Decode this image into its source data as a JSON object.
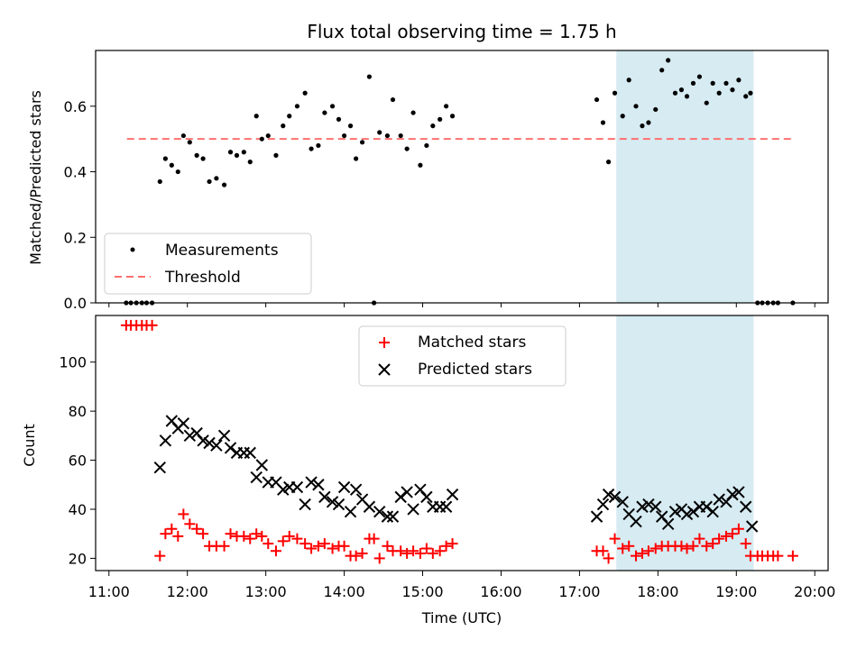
{
  "chart_data": [
    {
      "type": "scatter",
      "title": "Flux total observing time = 1.75 h",
      "ylabel": "Matched/Predicted stars",
      "xlabel": "",
      "x_unit": "hours UTC",
      "xlim": [
        10.83,
        20.17
      ],
      "ylim": [
        0.0,
        0.77
      ],
      "yticks": [
        0.0,
        0.2,
        0.4,
        0.6
      ],
      "ytick_labels": [
        "0.0",
        "0.2",
        "0.4",
        "0.6"
      ],
      "shaded_region": {
        "x": [
          17.47,
          19.22
        ],
        "color": "#add8e6"
      },
      "legend": {
        "placement": "lower-left",
        "entries": [
          "Measurements",
          "Threshold"
        ]
      },
      "threshold": {
        "name": "Threshold",
        "x": [
          11.23,
          19.73
        ],
        "y": 0.5,
        "color": "#ff7070"
      },
      "series": [
        {
          "name": "Measurements",
          "marker": "dot",
          "color": "#000000",
          "points": [
            [
              11.22,
              0.0
            ],
            [
              11.28,
              0.0
            ],
            [
              11.35,
              0.0
            ],
            [
              11.42,
              0.0
            ],
            [
              11.48,
              0.0
            ],
            [
              11.55,
              0.0
            ],
            [
              11.65,
              0.37
            ],
            [
              11.72,
              0.44
            ],
            [
              11.8,
              0.42
            ],
            [
              11.88,
              0.4
            ],
            [
              11.95,
              0.51
            ],
            [
              12.03,
              0.49
            ],
            [
              12.12,
              0.45
            ],
            [
              12.2,
              0.44
            ],
            [
              12.28,
              0.37
            ],
            [
              12.37,
              0.38
            ],
            [
              12.47,
              0.36
            ],
            [
              12.55,
              0.46
            ],
            [
              12.63,
              0.45
            ],
            [
              12.72,
              0.46
            ],
            [
              12.8,
              0.43
            ],
            [
              12.88,
              0.57
            ],
            [
              12.95,
              0.5
            ],
            [
              13.03,
              0.51
            ],
            [
              13.13,
              0.45
            ],
            [
              13.22,
              0.54
            ],
            [
              13.3,
              0.57
            ],
            [
              13.4,
              0.6
            ],
            [
              13.5,
              0.64
            ],
            [
              13.58,
              0.47
            ],
            [
              13.67,
              0.48
            ],
            [
              13.75,
              0.58
            ],
            [
              13.85,
              0.6
            ],
            [
              13.93,
              0.56
            ],
            [
              14.0,
              0.51
            ],
            [
              14.08,
              0.54
            ],
            [
              14.15,
              0.44
            ],
            [
              14.23,
              0.49
            ],
            [
              14.32,
              0.69
            ],
            [
              14.38,
              0.0
            ],
            [
              14.45,
              0.52
            ],
            [
              14.55,
              0.51
            ],
            [
              14.62,
              0.62
            ],
            [
              14.72,
              0.51
            ],
            [
              14.8,
              0.47
            ],
            [
              14.88,
              0.58
            ],
            [
              14.97,
              0.42
            ],
            [
              15.05,
              0.48
            ],
            [
              15.13,
              0.54
            ],
            [
              15.22,
              0.56
            ],
            [
              15.3,
              0.6
            ],
            [
              15.38,
              0.57
            ],
            [
              17.22,
              0.62
            ],
            [
              17.3,
              0.55
            ],
            [
              17.37,
              0.43
            ],
            [
              17.45,
              0.64
            ],
            [
              17.55,
              0.57
            ],
            [
              17.63,
              0.68
            ],
            [
              17.72,
              0.6
            ],
            [
              17.8,
              0.54
            ],
            [
              17.88,
              0.55
            ],
            [
              17.97,
              0.59
            ],
            [
              18.05,
              0.71
            ],
            [
              18.13,
              0.74
            ],
            [
              18.22,
              0.64
            ],
            [
              18.3,
              0.65
            ],
            [
              18.37,
              0.63
            ],
            [
              18.45,
              0.67
            ],
            [
              18.53,
              0.69
            ],
            [
              18.62,
              0.61
            ],
            [
              18.7,
              0.67
            ],
            [
              18.78,
              0.64
            ],
            [
              18.87,
              0.67
            ],
            [
              18.95,
              0.65
            ],
            [
              19.03,
              0.68
            ],
            [
              19.12,
              0.63
            ],
            [
              19.18,
              0.64
            ],
            [
              19.27,
              0.0
            ],
            [
              19.33,
              0.0
            ],
            [
              19.4,
              0.0
            ],
            [
              19.47,
              0.0
            ],
            [
              19.53,
              0.0
            ],
            [
              19.72,
              0.0
            ]
          ]
        }
      ]
    },
    {
      "type": "scatter",
      "title": "",
      "xlabel": "Time (UTC)",
      "ylabel": "Count",
      "x_unit": "hours UTC",
      "xlim": [
        10.83,
        20.17
      ],
      "ylim": [
        15,
        119
      ],
      "yticks": [
        20,
        40,
        60,
        80,
        100
      ],
      "ytick_labels": [
        "20",
        "40",
        "60",
        "80",
        "100"
      ],
      "xticks": [
        11,
        12,
        13,
        14,
        15,
        16,
        17,
        18,
        19,
        20
      ],
      "xtick_labels": [
        "11:00",
        "12:00",
        "13:00",
        "14:00",
        "15:00",
        "16:00",
        "17:00",
        "18:00",
        "19:00",
        "20:00"
      ],
      "shaded_region": {
        "x": [
          17.47,
          19.22
        ],
        "color": "#add8e6"
      },
      "legend": {
        "placement": "upper-center",
        "entries": [
          "Matched stars",
          "Predicted stars"
        ]
      },
      "series": [
        {
          "name": "Matched stars",
          "marker": "plus",
          "color": "#ff0000",
          "points": [
            [
              11.22,
              115
            ],
            [
              11.28,
              115
            ],
            [
              11.35,
              115
            ],
            [
              11.42,
              115
            ],
            [
              11.48,
              115
            ],
            [
              11.55,
              115
            ],
            [
              11.65,
              21
            ],
            [
              11.72,
              30
            ],
            [
              11.8,
              32
            ],
            [
              11.88,
              29
            ],
            [
              11.95,
              38
            ],
            [
              12.03,
              34
            ],
            [
              12.12,
              32
            ],
            [
              12.2,
              30
            ],
            [
              12.28,
              25
            ],
            [
              12.37,
              25
            ],
            [
              12.47,
              25
            ],
            [
              12.55,
              30
            ],
            [
              12.63,
              29
            ],
            [
              12.72,
              29
            ],
            [
              12.8,
              28
            ],
            [
              12.88,
              30
            ],
            [
              12.95,
              29
            ],
            [
              13.03,
              26
            ],
            [
              13.13,
              23
            ],
            [
              13.22,
              27
            ],
            [
              13.3,
              29
            ],
            [
              13.4,
              28
            ],
            [
              13.5,
              26
            ],
            [
              13.58,
              24
            ],
            [
              13.67,
              25
            ],
            [
              13.75,
              26
            ],
            [
              13.85,
              24
            ],
            [
              13.93,
              25
            ],
            [
              14.0,
              25
            ],
            [
              14.08,
              21
            ],
            [
              14.15,
              21
            ],
            [
              14.23,
              22
            ],
            [
              14.32,
              28
            ],
            [
              14.38,
              28
            ],
            [
              14.45,
              20
            ],
            [
              14.55,
              25
            ],
            [
              14.62,
              23
            ],
            [
              14.72,
              23
            ],
            [
              14.8,
              22
            ],
            [
              14.88,
              23
            ],
            [
              14.97,
              22
            ],
            [
              15.05,
              24
            ],
            [
              15.13,
              22
            ],
            [
              15.22,
              23
            ],
            [
              15.3,
              25
            ],
            [
              15.38,
              26
            ],
            [
              17.22,
              23
            ],
            [
              17.3,
              23
            ],
            [
              17.37,
              20
            ],
            [
              17.45,
              28
            ],
            [
              17.55,
              24
            ],
            [
              17.63,
              25
            ],
            [
              17.72,
              21
            ],
            [
              17.8,
              22
            ],
            [
              17.88,
              23
            ],
            [
              17.97,
              24
            ],
            [
              18.05,
              25
            ],
            [
              18.13,
              25
            ],
            [
              18.22,
              25
            ],
            [
              18.3,
              25
            ],
            [
              18.37,
              24
            ],
            [
              18.45,
              25
            ],
            [
              18.53,
              28
            ],
            [
              18.62,
              25
            ],
            [
              18.7,
              26
            ],
            [
              18.78,
              28
            ],
            [
              18.87,
              29
            ],
            [
              18.95,
              30
            ],
            [
              19.03,
              32
            ],
            [
              19.12,
              26
            ],
            [
              19.18,
              21
            ],
            [
              19.27,
              21
            ],
            [
              19.33,
              21
            ],
            [
              19.4,
              21
            ],
            [
              19.47,
              21
            ],
            [
              19.53,
              21
            ],
            [
              19.72,
              21
            ]
          ]
        },
        {
          "name": "Predicted stars",
          "marker": "x",
          "color": "#000000",
          "points": [
            [
              11.65,
              57
            ],
            [
              11.72,
              68
            ],
            [
              11.8,
              76
            ],
            [
              11.88,
              73
            ],
            [
              11.95,
              75
            ],
            [
              12.03,
              70
            ],
            [
              12.12,
              71
            ],
            [
              12.2,
              68
            ],
            [
              12.28,
              67
            ],
            [
              12.37,
              66
            ],
            [
              12.47,
              70
            ],
            [
              12.55,
              65
            ],
            [
              12.63,
              63
            ],
            [
              12.72,
              63
            ],
            [
              12.8,
              63
            ],
            [
              12.88,
              53
            ],
            [
              12.95,
              58
            ],
            [
              13.03,
              51
            ],
            [
              13.13,
              51
            ],
            [
              13.22,
              48
            ],
            [
              13.3,
              49
            ],
            [
              13.4,
              49
            ],
            [
              13.5,
              42
            ],
            [
              13.58,
              51
            ],
            [
              13.67,
              50
            ],
            [
              13.75,
              45
            ],
            [
              13.85,
              43
            ],
            [
              13.93,
              42
            ],
            [
              14.0,
              49
            ],
            [
              14.08,
              39
            ],
            [
              14.15,
              48
            ],
            [
              14.23,
              44
            ],
            [
              14.32,
              41
            ],
            [
              14.45,
              39
            ],
            [
              14.55,
              37
            ],
            [
              14.62,
              37
            ],
            [
              14.72,
              45
            ],
            [
              14.8,
              47
            ],
            [
              14.88,
              40
            ],
            [
              14.97,
              48
            ],
            [
              15.05,
              45
            ],
            [
              15.13,
              41
            ],
            [
              15.22,
              41
            ],
            [
              15.3,
              41
            ],
            [
              15.38,
              46
            ],
            [
              17.22,
              37
            ],
            [
              17.3,
              42
            ],
            [
              17.37,
              46
            ],
            [
              17.45,
              45
            ],
            [
              17.55,
              43
            ],
            [
              17.63,
              38
            ],
            [
              17.72,
              35
            ],
            [
              17.8,
              41
            ],
            [
              17.88,
              42
            ],
            [
              17.97,
              41
            ],
            [
              18.05,
              37
            ],
            [
              18.13,
              34
            ],
            [
              18.22,
              39
            ],
            [
              18.3,
              40
            ],
            [
              18.37,
              38
            ],
            [
              18.45,
              39
            ],
            [
              18.53,
              41
            ],
            [
              18.62,
              41
            ],
            [
              18.7,
              39
            ],
            [
              18.78,
              44
            ],
            [
              18.87,
              43
            ],
            [
              18.95,
              46
            ],
            [
              19.03,
              47
            ],
            [
              19.12,
              41
            ],
            [
              19.2,
              33
            ]
          ]
        }
      ]
    }
  ]
}
